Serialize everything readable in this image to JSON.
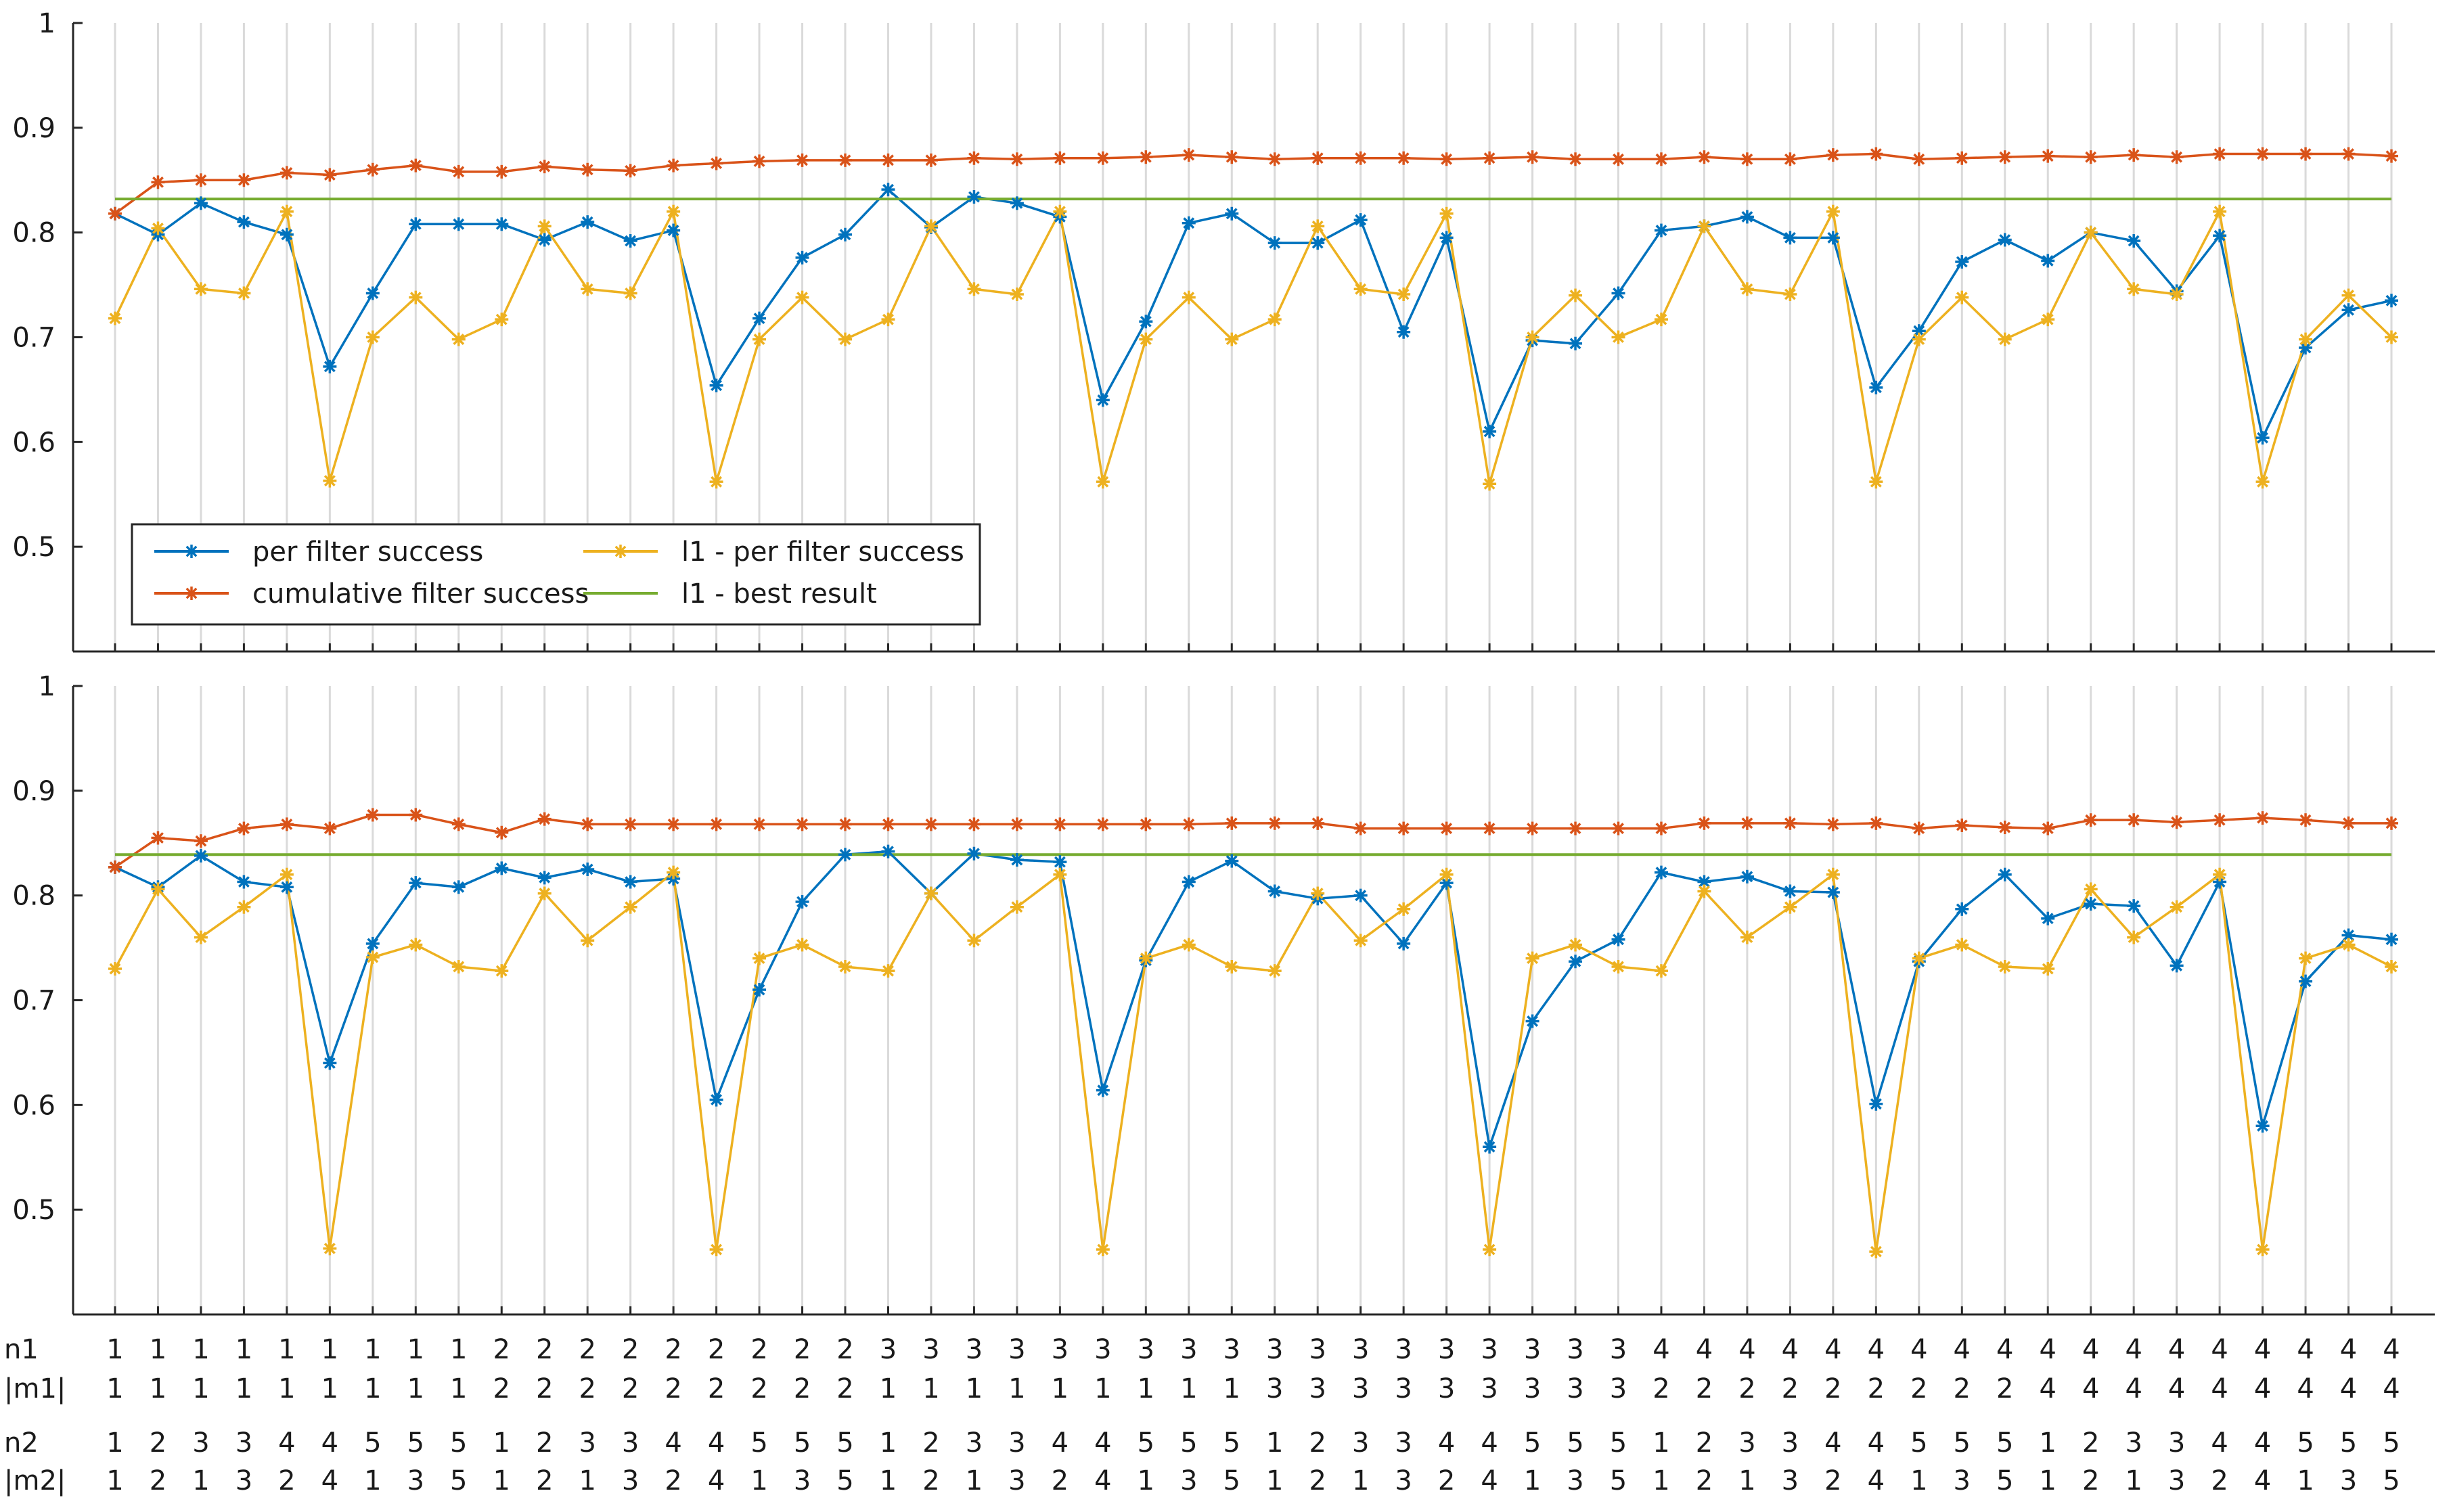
{
  "chart_data": {
    "type": "line",
    "panels": [
      {
        "title": "",
        "ylim": [
          0.4,
          1.0
        ],
        "yticks": [
          0.5,
          0.6,
          0.7,
          0.8,
          0.9,
          1
        ],
        "ytick_labels": [
          "0.5",
          "0.6",
          "0.7",
          "0.8",
          "0.9",
          "1"
        ],
        "grid": "vertical",
        "legend": {
          "position": "lower-left",
          "entries": [
            "per filter success",
            "cumulative filter success",
            "l1 - per filter success",
            "l1 - best result"
          ]
        },
        "series": [
          {
            "name": "per filter success",
            "color": "#0072BD",
            "marker": "asterisk",
            "values": [
              0.818,
              0.798,
              0.828,
              0.81,
              0.798,
              0.672,
              0.742,
              0.808,
              0.808,
              0.808,
              0.793,
              0.81,
              0.792,
              0.802,
              0.654,
              0.718,
              0.776,
              0.798,
              0.841,
              0.805,
              0.834,
              0.828,
              0.815,
              0.64,
              0.715,
              0.809,
              0.818,
              0.79,
              0.79,
              0.812,
              0.705,
              0.795,
              0.61,
              0.697,
              0.694,
              0.742,
              0.802,
              0.806,
              0.815,
              0.795,
              0.795,
              0.652,
              0.706,
              0.772,
              0.793,
              0.773,
              0.8,
              0.792,
              0.744,
              0.797,
              0.604,
              0.69,
              0.726,
              0.735
            ]
          },
          {
            "name": "cumulative filter success",
            "color": "#D95319",
            "marker": "asterisk",
            "values": [
              0.818,
              0.848,
              0.85,
              0.85,
              0.857,
              0.855,
              0.86,
              0.864,
              0.858,
              0.858,
              0.863,
              0.86,
              0.859,
              0.864,
              0.866,
              0.868,
              0.869,
              0.869,
              0.869,
              0.869,
              0.871,
              0.87,
              0.871,
              0.871,
              0.872,
              0.874,
              0.872,
              0.87,
              0.871,
              0.871,
              0.871,
              0.87,
              0.871,
              0.872,
              0.87,
              0.87,
              0.87,
              0.872,
              0.87,
              0.87,
              0.874,
              0.875,
              0.87,
              0.871,
              0.872,
              0.873,
              0.872,
              0.874,
              0.872,
              0.875,
              0.875,
              0.875,
              0.875,
              0.873
            ]
          },
          {
            "name": "l1 - per filter success",
            "color": "#EDB120",
            "marker": "asterisk",
            "values": [
              0.718,
              0.804,
              0.746,
              0.742,
              0.82,
              0.563,
              0.7,
              0.738,
              0.698,
              0.717,
              0.806,
              0.746,
              0.742,
              0.82,
              0.562,
              0.698,
              0.738,
              0.698,
              0.717,
              0.806,
              0.746,
              0.741,
              0.82,
              0.562,
              0.698,
              0.738,
              0.698,
              0.717,
              0.806,
              0.746,
              0.741,
              0.818,
              0.56,
              0.7,
              0.74,
              0.7,
              0.717,
              0.806,
              0.746,
              0.741,
              0.82,
              0.562,
              0.698,
              0.738,
              0.698,
              0.717,
              0.8,
              0.746,
              0.741,
              0.82,
              0.562,
              0.698,
              0.74,
              0.7
            ]
          },
          {
            "name": "l1 - best result",
            "color": "#77AC30",
            "marker": "none",
            "values": [
              0.832,
              0.832
            ]
          }
        ]
      },
      {
        "title": "",
        "ylim": [
          0.4,
          1.0
        ],
        "yticks": [
          0.5,
          0.6,
          0.7,
          0.8,
          0.9,
          1
        ],
        "ytick_labels": [
          "0.5",
          "0.6",
          "0.7",
          "0.8",
          "0.9",
          "1"
        ],
        "grid": "vertical",
        "series": [
          {
            "name": "per filter success",
            "color": "#0072BD",
            "marker": "asterisk",
            "values": [
              0.827,
              0.808,
              0.838,
              0.813,
              0.808,
              0.64,
              0.754,
              0.812,
              0.808,
              0.826,
              0.817,
              0.825,
              0.813,
              0.816,
              0.605,
              0.71,
              0.794,
              0.839,
              0.842,
              0.802,
              0.84,
              0.834,
              0.832,
              0.614,
              0.738,
              0.813,
              0.833,
              0.804,
              0.797,
              0.8,
              0.754,
              0.812,
              0.56,
              0.68,
              0.737,
              0.758,
              0.822,
              0.813,
              0.818,
              0.804,
              0.803,
              0.601,
              0.737,
              0.787,
              0.82,
              0.778,
              0.792,
              0.79,
              0.733,
              0.813,
              0.58,
              0.718,
              0.762,
              0.758
            ]
          },
          {
            "name": "cumulative filter success",
            "color": "#D95319",
            "marker": "asterisk",
            "values": [
              0.827,
              0.855,
              0.852,
              0.864,
              0.868,
              0.864,
              0.877,
              0.877,
              0.868,
              0.86,
              0.873,
              0.868,
              0.868,
              0.868,
              0.868,
              0.868,
              0.868,
              0.868,
              0.868,
              0.868,
              0.868,
              0.868,
              0.868,
              0.868,
              0.868,
              0.868,
              0.869,
              0.869,
              0.869,
              0.864,
              0.864,
              0.864,
              0.864,
              0.864,
              0.864,
              0.864,
              0.864,
              0.869,
              0.869,
              0.869,
              0.868,
              0.869,
              0.864,
              0.867,
              0.865,
              0.864,
              0.872,
              0.872,
              0.87,
              0.872,
              0.874,
              0.872,
              0.869,
              0.869
            ]
          },
          {
            "name": "l1 - per filter success",
            "color": "#EDB120",
            "marker": "asterisk",
            "values": [
              0.73,
              0.806,
              0.76,
              0.789,
              0.82,
              0.463,
              0.741,
              0.753,
              0.732,
              0.728,
              0.802,
              0.757,
              0.789,
              0.822,
              0.462,
              0.74,
              0.753,
              0.732,
              0.728,
              0.802,
              0.757,
              0.789,
              0.82,
              0.462,
              0.74,
              0.753,
              0.732,
              0.728,
              0.802,
              0.757,
              0.787,
              0.82,
              0.462,
              0.74,
              0.753,
              0.732,
              0.728,
              0.804,
              0.76,
              0.789,
              0.82,
              0.46,
              0.74,
              0.753,
              0.732,
              0.73,
              0.806,
              0.76,
              0.789,
              0.82,
              0.462,
              0.74,
              0.753,
              0.732
            ]
          },
          {
            "name": "l1 - best result",
            "color": "#77AC30",
            "marker": "none",
            "values": [
              0.839,
              0.839
            ]
          }
        ]
      }
    ],
    "x_label_rows": [
      {
        "label": "n1",
        "values": [
          "1",
          "1",
          "1",
          "1",
          "1",
          "1",
          "1",
          "1",
          "1",
          "2",
          "2",
          "2",
          "2",
          "2",
          "2",
          "2",
          "2",
          "2",
          "3",
          "3",
          "3",
          "3",
          "3",
          "3",
          "3",
          "3",
          "3",
          "3",
          "3",
          "3",
          "3",
          "3",
          "3",
          "3",
          "3",
          "3",
          "4",
          "4",
          "4",
          "4",
          "4",
          "4",
          "4",
          "4",
          "4",
          "4",
          "4",
          "4",
          "4",
          "4",
          "4",
          "4",
          "4",
          "4"
        ]
      },
      {
        "label": "|m1|",
        "values": [
          "1",
          "1",
          "1",
          "1",
          "1",
          "1",
          "1",
          "1",
          "1",
          "2",
          "2",
          "2",
          "2",
          "2",
          "2",
          "2",
          "2",
          "2",
          "1",
          "1",
          "1",
          "1",
          "1",
          "1",
          "1",
          "1",
          "1",
          "3",
          "3",
          "3",
          "3",
          "3",
          "3",
          "3",
          "3",
          "3",
          "2",
          "2",
          "2",
          "2",
          "2",
          "2",
          "2",
          "2",
          "2",
          "4",
          "4",
          "4",
          "4",
          "4",
          "4",
          "4",
          "4",
          "4"
        ]
      },
      {
        "label": "n2",
        "values": [
          "1",
          "2",
          "3",
          "3",
          "4",
          "4",
          "5",
          "5",
          "5",
          "1",
          "2",
          "3",
          "3",
          "4",
          "4",
          "5",
          "5",
          "5",
          "1",
          "2",
          "3",
          "3",
          "4",
          "4",
          "5",
          "5",
          "5",
          "1",
          "2",
          "3",
          "3",
          "4",
          "4",
          "5",
          "5",
          "5",
          "1",
          "2",
          "3",
          "3",
          "4",
          "4",
          "5",
          "5",
          "5",
          "1",
          "2",
          "3",
          "3",
          "4",
          "4",
          "5",
          "5",
          "5"
        ]
      },
      {
        "label": "|m2|",
        "values": [
          "1",
          "2",
          "1",
          "3",
          "2",
          "4",
          "1",
          "3",
          "5",
          "1",
          "2",
          "1",
          "3",
          "2",
          "4",
          "1",
          "3",
          "5",
          "1",
          "2",
          "1",
          "3",
          "2",
          "4",
          "1",
          "3",
          "5",
          "1",
          "2",
          "1",
          "3",
          "2",
          "4",
          "1",
          "3",
          "5",
          "1",
          "2",
          "1",
          "3",
          "2",
          "4",
          "1",
          "3",
          "5",
          "1",
          "2",
          "1",
          "3",
          "2",
          "4",
          "1",
          "3",
          "5"
        ]
      }
    ]
  }
}
